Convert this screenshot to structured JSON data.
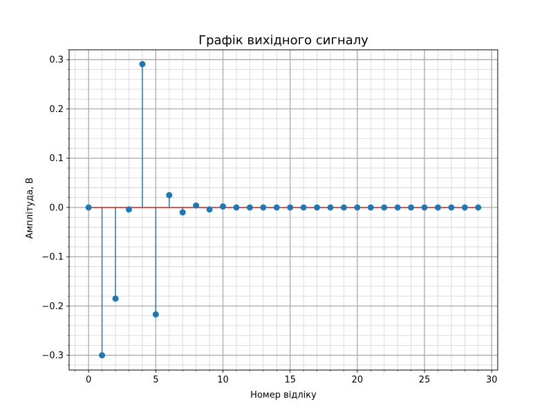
{
  "chart_data": {
    "type": "stem",
    "title": "Графік вихідного сигналу",
    "xlabel": "Номер відліку",
    "ylabel": "Амплітуда, В",
    "x": [
      0,
      1,
      2,
      3,
      4,
      5,
      6,
      7,
      8,
      9,
      10,
      11,
      12,
      13,
      14,
      15,
      16,
      17,
      18,
      19,
      20,
      21,
      22,
      23,
      24,
      25,
      26,
      27,
      28,
      29
    ],
    "values": [
      0.0,
      -0.3,
      -0.185,
      -0.004,
      0.291,
      -0.217,
      0.025,
      -0.01,
      0.004,
      -0.004,
      0.002,
      0.0,
      0.0,
      0.0,
      0.0,
      0.0,
      0.0,
      0.0,
      0.0,
      0.0,
      0.0,
      0.0,
      0.0,
      0.0,
      0.0,
      0.0,
      0.0,
      0.0,
      0.0,
      0.0
    ],
    "xlim": [
      -1.45,
      30.45
    ],
    "ylim": [
      -0.33,
      0.32
    ],
    "xticks": [
      0,
      5,
      10,
      15,
      20,
      25,
      30
    ],
    "xtick_labels": [
      "0",
      "5",
      "10",
      "15",
      "20",
      "25",
      "30"
    ],
    "yticks": [
      -0.3,
      -0.2,
      -0.1,
      0.0,
      0.1,
      0.2,
      0.3
    ],
    "ytick_labels": [
      "−0.3",
      "−0.2",
      "−0.1",
      "0.0",
      "0.1",
      "0.2",
      "0.3"
    ],
    "x_minor_step": 1,
    "y_minor_step": 0.02,
    "grid": true,
    "minor_grid": true,
    "colors": {
      "stem": "#1f77b4",
      "marker": "#1f77b4",
      "baseline": "#d62728",
      "major_grid": "#b0b0b0",
      "minor_grid": "#d3d3d3"
    }
  }
}
